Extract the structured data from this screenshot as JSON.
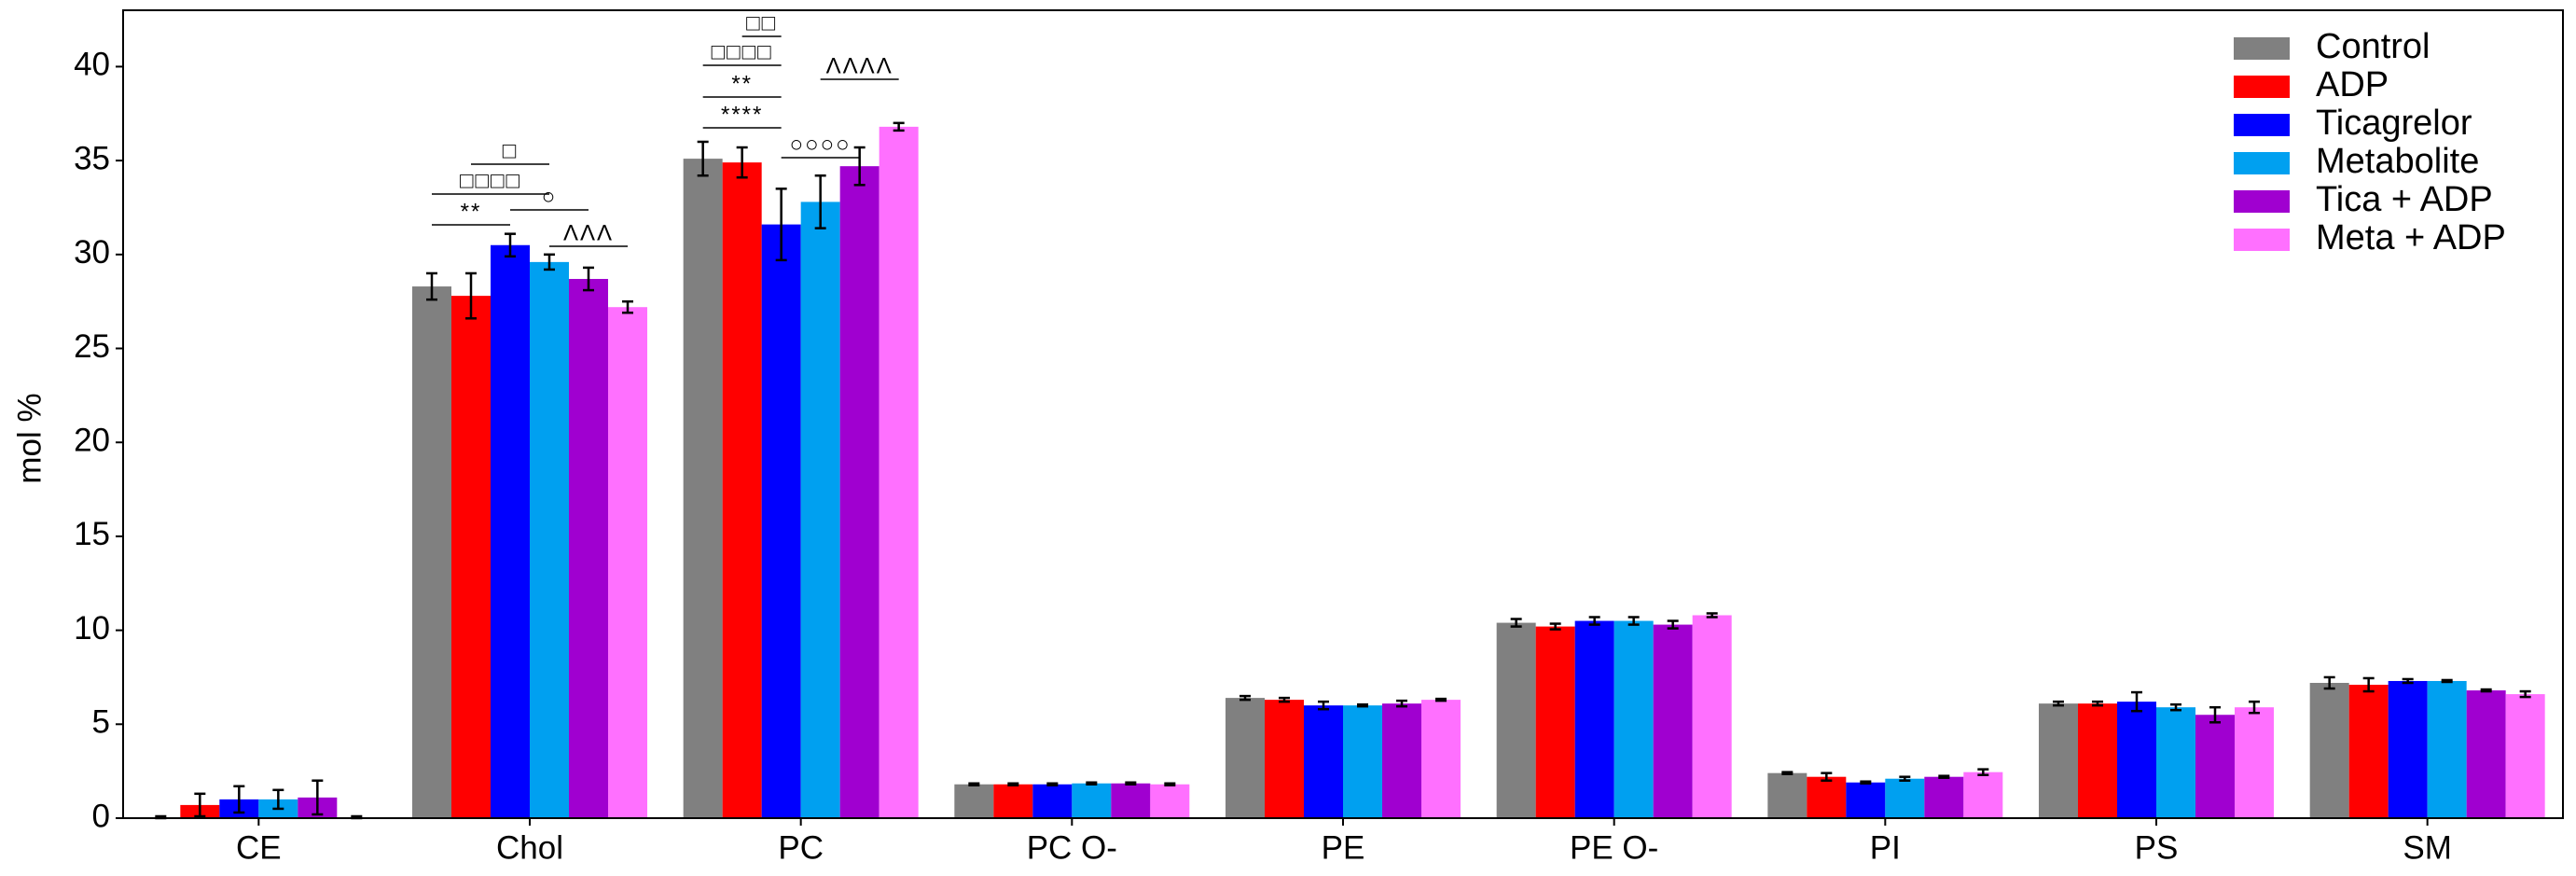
{
  "chart_data": {
    "type": "bar",
    "y_label": "mol %",
    "categories": [
      "CE",
      "Chol",
      "PC",
      "PC O-",
      "PE",
      "PE O-",
      "PI",
      "PS",
      "SM"
    ],
    "series": [
      {
        "name": "Control",
        "color": "#808080",
        "values": [
          0.05,
          28.3,
          35.1,
          1.8,
          6.4,
          10.4,
          2.4,
          6.1,
          7.2
        ],
        "errors": [
          0.05,
          0.7,
          0.9,
          0.05,
          0.1,
          0.2,
          0.05,
          0.1,
          0.3
        ]
      },
      {
        "name": "ADP",
        "color": "#ff0000",
        "values": [
          0.7,
          27.8,
          34.9,
          1.8,
          6.3,
          10.2,
          2.2,
          6.1,
          7.1
        ],
        "errors": [
          0.6,
          1.2,
          0.8,
          0.05,
          0.1,
          0.15,
          0.2,
          0.1,
          0.35
        ]
      },
      {
        "name": "Ticagrelor",
        "color": "#0000ff",
        "values": [
          1.0,
          30.5,
          31.6,
          1.8,
          6.0,
          10.5,
          1.9,
          6.2,
          7.3
        ],
        "errors": [
          0.7,
          0.6,
          1.9,
          0.05,
          0.2,
          0.2,
          0.05,
          0.5,
          0.1
        ]
      },
      {
        "name": "Metabolite",
        "color": "#00a0f0",
        "values": [
          1.0,
          29.6,
          32.8,
          1.85,
          6.0,
          10.5,
          2.1,
          5.9,
          7.3
        ],
        "errors": [
          0.5,
          0.4,
          1.4,
          0.05,
          0.05,
          0.2,
          0.1,
          0.15,
          0.05
        ]
      },
      {
        "name": "Tica + ADP",
        "color": "#a000d0",
        "values": [
          1.1,
          28.7,
          34.7,
          1.85,
          6.1,
          10.3,
          2.2,
          5.5,
          6.8
        ],
        "errors": [
          0.9,
          0.6,
          1.0,
          0.05,
          0.15,
          0.2,
          0.05,
          0.4,
          0.05
        ]
      },
      {
        "name": "Meta + ADP",
        "color": "#ff70ff",
        "values": [
          0.05,
          27.2,
          36.8,
          1.8,
          6.3,
          10.8,
          2.45,
          5.9,
          6.6
        ],
        "errors": [
          0.05,
          0.3,
          0.2,
          0.05,
          0.05,
          0.1,
          0.15,
          0.3,
          0.15
        ]
      }
    ],
    "ylim": [
      0,
      43
    ],
    "yticks": [
      0,
      5,
      10,
      15,
      20,
      25,
      30,
      35,
      40
    ],
    "legend": "upper right",
    "annotations": [
      "**",
      "□□□□",
      "□",
      "○",
      "ΛΛΛ",
      "****",
      "**",
      "□□□□",
      "□□",
      "○○○○",
      "ΛΛΛΛ"
    ]
  }
}
